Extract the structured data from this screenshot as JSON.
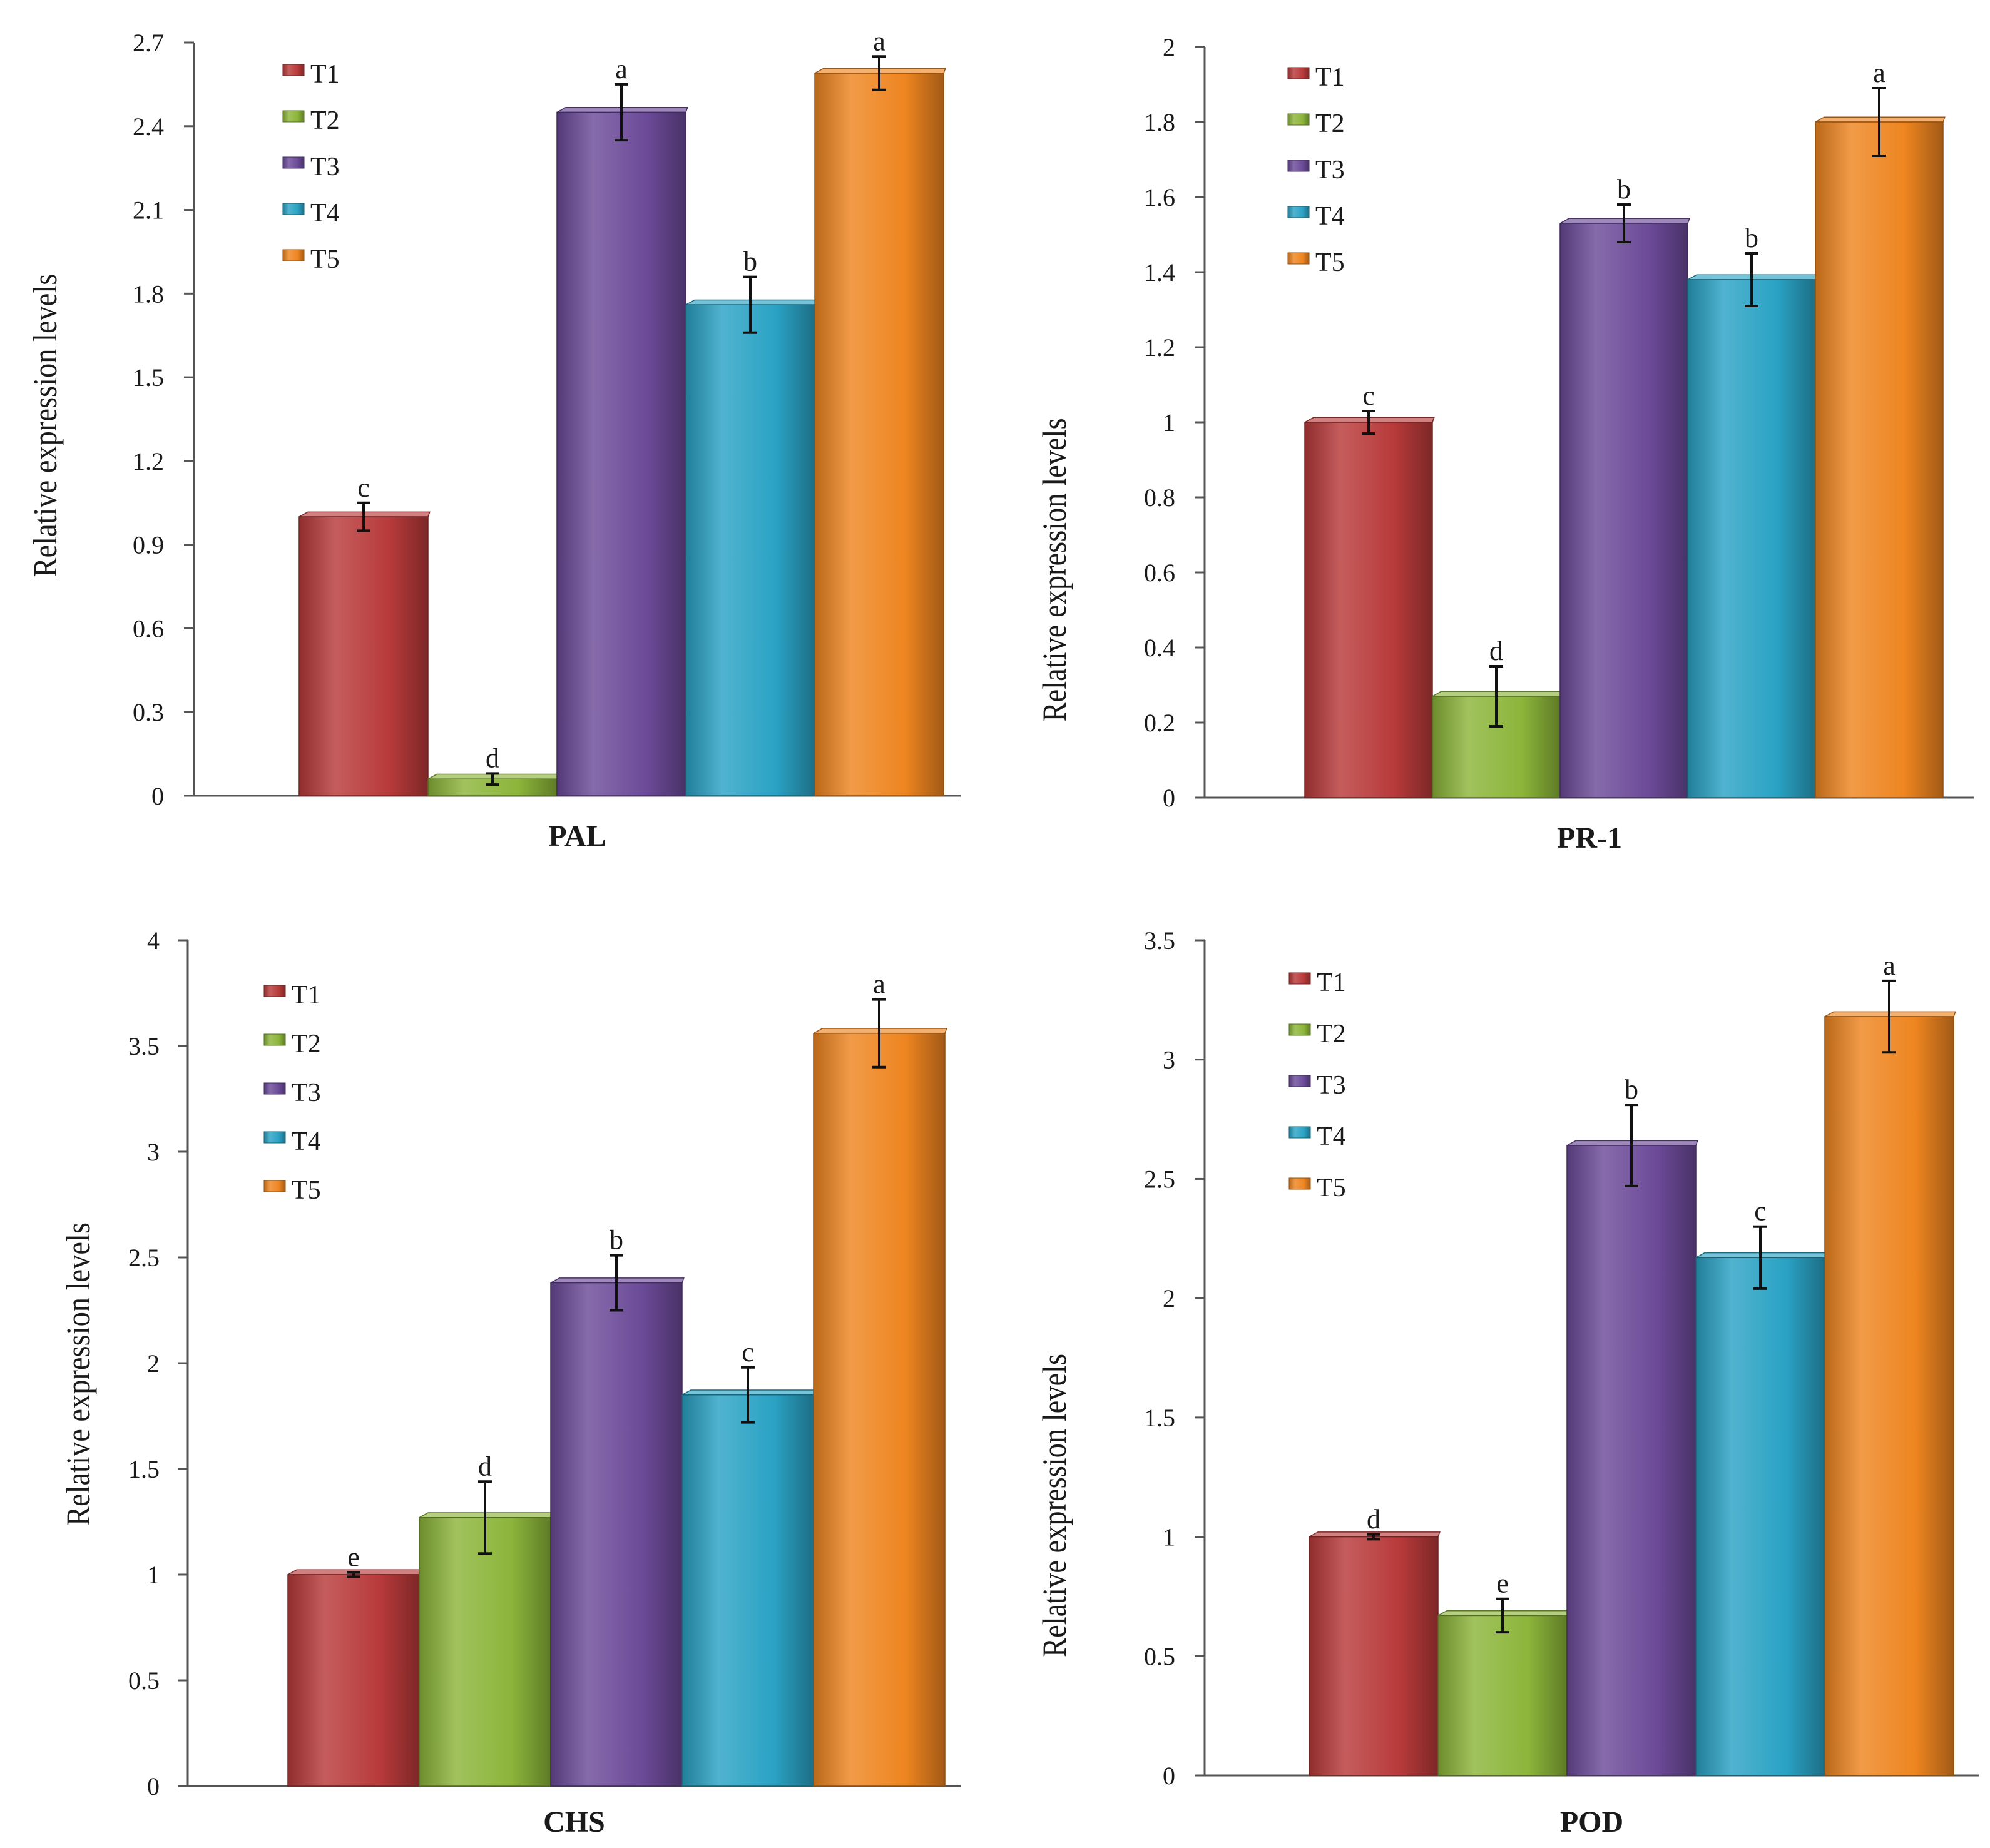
{
  "colors": {
    "T1": "#b83a3a",
    "T2": "#8cb53a",
    "T3": "#6b4a98",
    "T4": "#2aa2c4",
    "T5": "#ee8520",
    "axis": "#555555"
  },
  "chart_data": [
    {
      "type": "bar",
      "xlabel": "PAL",
      "ylabel": "Relative expression levels",
      "ylim": [
        0,
        2.7
      ],
      "yticks": [
        0,
        0.3,
        0.6,
        0.9,
        1.2,
        1.5,
        1.8,
        2.1,
        2.4,
        2.7
      ],
      "ytick_labels": [
        "0",
        "0.3",
        "0.6",
        "0.9",
        "1.2",
        "1.5",
        "1.8",
        "2.1",
        "2.4",
        "2.7"
      ],
      "legend": [
        "T1",
        "T2",
        "T3",
        "T4",
        "T5"
      ],
      "legend_position": "top-left",
      "values": [
        1.0,
        0.06,
        2.45,
        1.76,
        2.59
      ],
      "errors": [
        0.05,
        0.02,
        0.1,
        0.1,
        0.06
      ],
      "letters": [
        "c",
        "d",
        "a",
        "b",
        "a"
      ]
    },
    {
      "type": "bar",
      "xlabel": "PR-1",
      "ylabel": "Relative expression levels",
      "ylim": [
        0,
        2
      ],
      "yticks": [
        0,
        0.2,
        0.4,
        0.6,
        0.8,
        1,
        1.2,
        1.4,
        1.6,
        1.8,
        2
      ],
      "ytick_labels": [
        "0",
        "0.2",
        "0.4",
        "0.6",
        "0.8",
        "1",
        "1.2",
        "1.4",
        "1.6",
        "1.8",
        "2"
      ],
      "legend": [
        "T1",
        "T2",
        "T3",
        "T4",
        "T5"
      ],
      "legend_position": "top-left",
      "values": [
        1.0,
        0.27,
        1.53,
        1.38,
        1.8
      ],
      "errors": [
        0.03,
        0.08,
        0.05,
        0.07,
        0.09
      ],
      "letters": [
        "c",
        "d",
        "b",
        "b",
        "a"
      ]
    },
    {
      "type": "bar",
      "xlabel": "CHS",
      "ylabel": "Relative expression levels",
      "ylim": [
        0,
        4
      ],
      "yticks": [
        0,
        0.5,
        1,
        1.5,
        2,
        2.5,
        3,
        3.5,
        4
      ],
      "ytick_labels": [
        "0",
        "0.5",
        "1",
        "1.5",
        "2",
        "2.5",
        "3",
        "3.5",
        "4"
      ],
      "legend": [
        "T1",
        "T2",
        "T3",
        "T4",
        "T5"
      ],
      "legend_position": "top-left",
      "values": [
        1.0,
        1.27,
        2.38,
        1.85,
        3.56
      ],
      "errors": [
        0.01,
        0.17,
        0.13,
        0.13,
        0.16
      ],
      "letters": [
        "e",
        "d",
        "b",
        "c",
        "a"
      ]
    },
    {
      "type": "bar",
      "xlabel": "POD",
      "ylabel": "Relative expression levels",
      "ylim": [
        0,
        3.5
      ],
      "yticks": [
        0,
        0.5,
        1,
        1.5,
        2,
        2.5,
        3,
        3.5
      ],
      "ytick_labels": [
        "0",
        "0.5",
        "1",
        "1.5",
        "2",
        "2.5",
        "3",
        "3.5"
      ],
      "legend": [
        "T1",
        "T2",
        "T3",
        "T4",
        "T5"
      ],
      "legend_position": "top-left",
      "values": [
        1.0,
        0.67,
        2.64,
        2.17,
        3.18
      ],
      "errors": [
        0.01,
        0.07,
        0.17,
        0.13,
        0.15
      ],
      "letters": [
        "d",
        "e",
        "b",
        "c",
        "a"
      ]
    }
  ]
}
